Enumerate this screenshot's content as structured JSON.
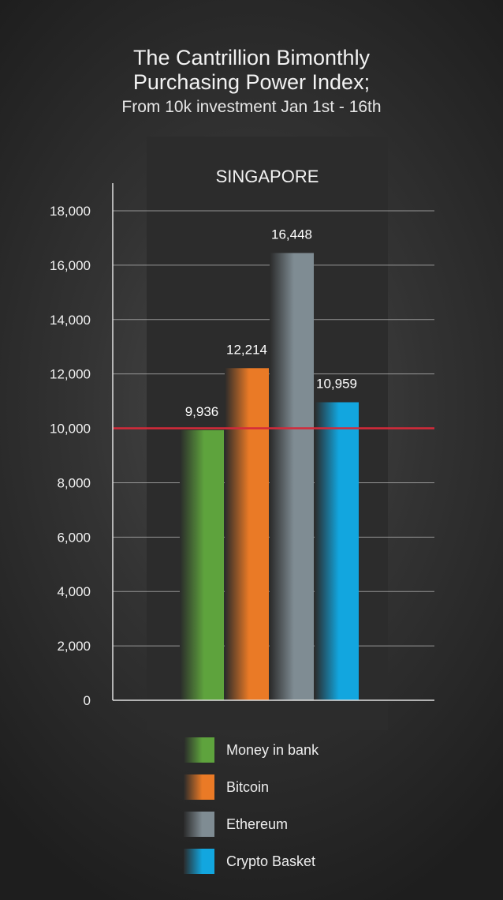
{
  "title": [
    "The Cantrillion Bimonthly",
    "Purchasing Power Index;"
  ],
  "subtitle": "From 10k investment Jan 1st - 16th",
  "chart_data": {
    "type": "bar",
    "panel_title": "SINGAPORE",
    "categories": [
      "Money in bank",
      "Bitcoin",
      "Ethereum",
      "Crypto Basket"
    ],
    "values": [
      9936,
      12214,
      16448,
      10959
    ],
    "value_labels": [
      "9,936",
      "12,214",
      "16,448",
      "10,959"
    ],
    "colors": [
      "#5ea33d",
      "#ea7a26",
      "#7f8c93",
      "#12a6df"
    ],
    "ylim": [
      0,
      18000
    ],
    "yticks": [
      0,
      2000,
      4000,
      6000,
      8000,
      10000,
      12000,
      14000,
      16000,
      18000
    ],
    "ytick_labels": [
      "0",
      "2,000",
      "4,000",
      "6,000",
      "8,000",
      "10,000",
      "12,000",
      "14,000",
      "16,000",
      "18,000"
    ],
    "reference_line": {
      "value": 10000,
      "color": "#d42a3a"
    },
    "grid": true,
    "legend_position": "bottom"
  }
}
